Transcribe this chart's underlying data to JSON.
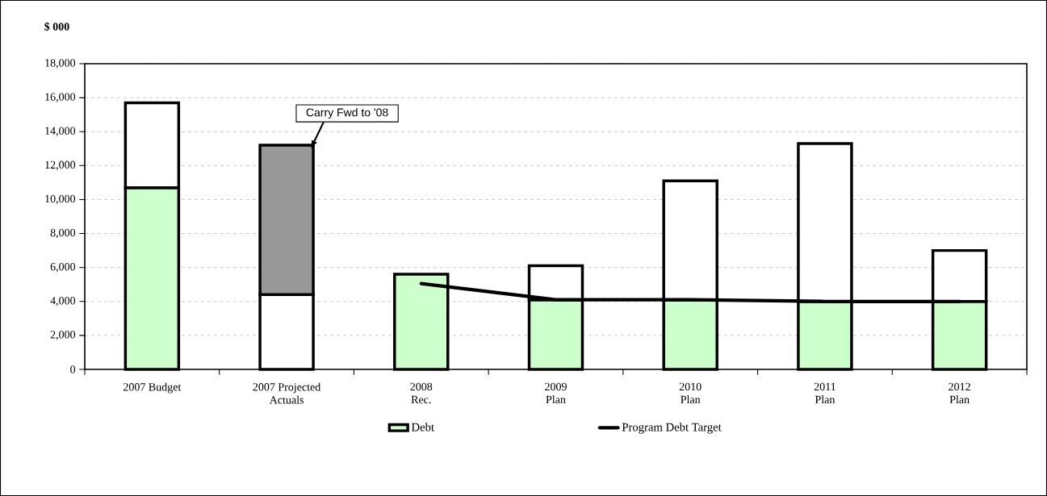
{
  "chart_data": {
    "type": "bar",
    "stacked": true,
    "ylabel": "$ 000",
    "categories": [
      "2007 Budget",
      "2007 Projected Actuals",
      "2008 Rec.",
      "2009 Plan",
      "2010 Plan",
      "2011 Plan",
      "2012 Plan"
    ],
    "series": [
      {
        "name": "Debt",
        "color": "#ccffcc",
        "values": [
          10700,
          0,
          5600,
          4100,
          4100,
          4000,
          4000
        ]
      },
      {
        "color": "#ffffff",
        "values": [
          5000,
          4400,
          0,
          2000,
          7000,
          9300,
          3000
        ]
      },
      {
        "color": "#999999",
        "values": [
          0,
          8800,
          0,
          0,
          0,
          0,
          0
        ]
      },
      {
        "name": "Program Debt Target",
        "type": "line",
        "color": "#000000",
        "values": [
          null,
          null,
          5050,
          4100,
          4100,
          4000,
          4000
        ]
      }
    ],
    "ylim": [
      0,
      18000
    ],
    "yticks": [
      {
        "value": 0,
        "label": "0"
      },
      {
        "value": 2000,
        "label": "2,000"
      },
      {
        "value": 4000,
        "label": "4,000"
      },
      {
        "value": 6000,
        "label": "6,000"
      },
      {
        "value": 8000,
        "label": "8,000"
      },
      {
        "value": 10000,
        "label": "10,000"
      },
      {
        "value": 12000,
        "label": "12,000"
      },
      {
        "value": 14000,
        "label": "14,000"
      },
      {
        "value": 16000,
        "label": "16,000"
      },
      {
        "value": 18000,
        "label": "18,000"
      }
    ],
    "grid": "y",
    "legend": "bottom",
    "annotations": [
      {
        "text": "Carry Fwd to '08",
        "x": "2007 Projected Actuals",
        "y": 13200
      }
    ]
  }
}
